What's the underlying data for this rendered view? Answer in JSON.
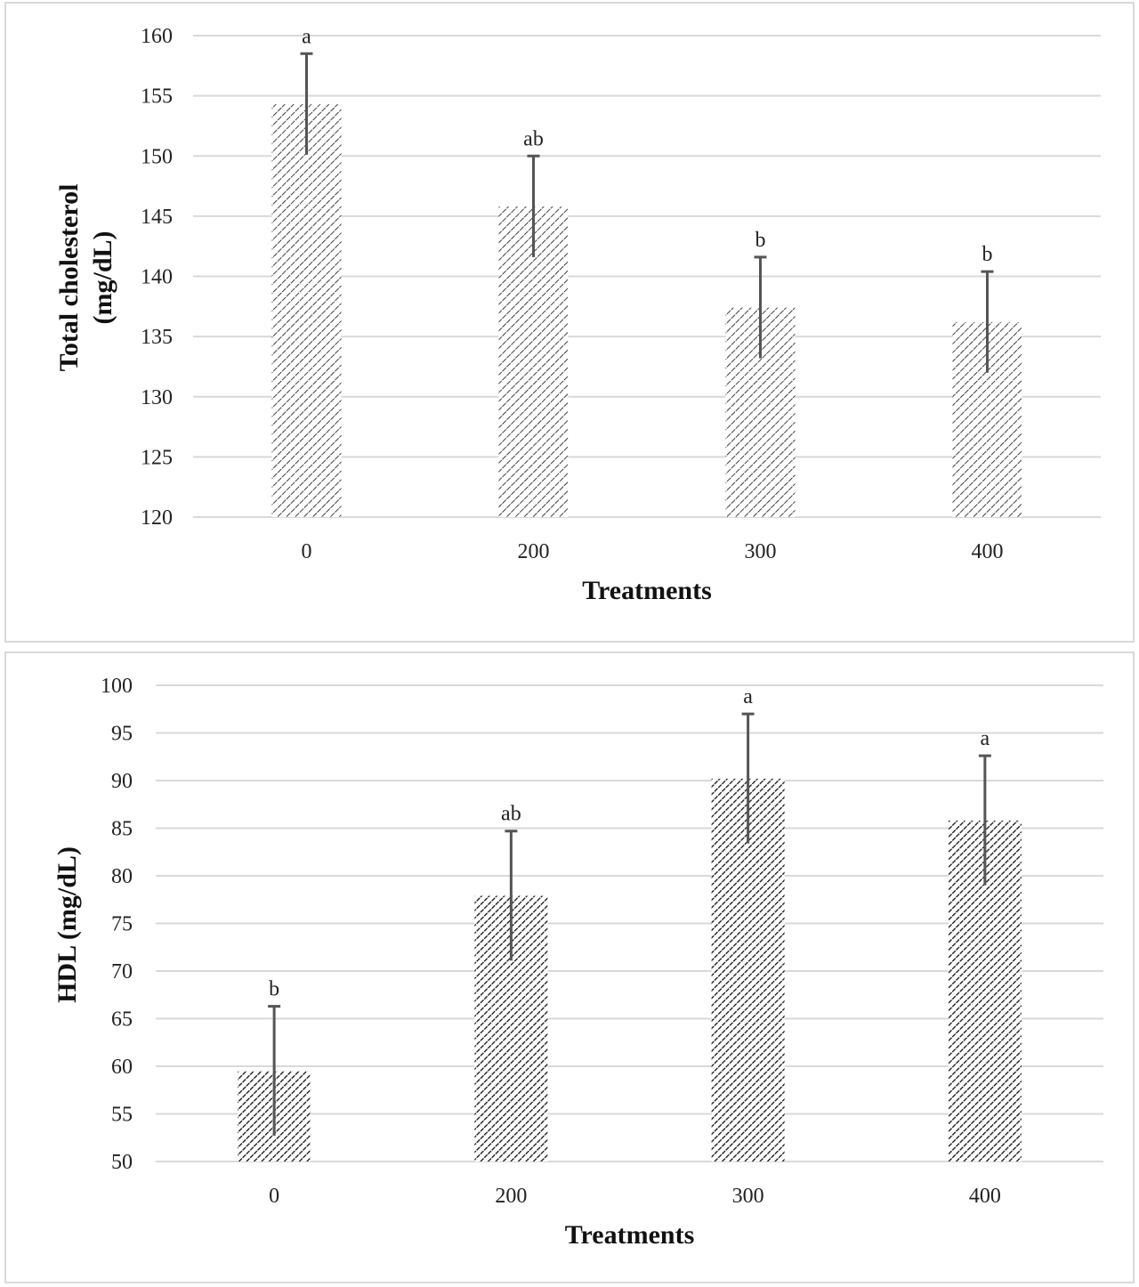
{
  "chart_data": [
    {
      "type": "bar",
      "categories": [
        "0",
        "200",
        "300",
        "400"
      ],
      "values": [
        154.3,
        145.8,
        137.4,
        136.2
      ],
      "error": [
        4.2,
        4.2,
        4.2,
        4.2
      ],
      "significance": [
        "a",
        "ab",
        "b",
        "b"
      ],
      "xlabel": "Treatments",
      "ylabel": [
        "Total cholesterol",
        "(mg/dL)"
      ],
      "ylim": [
        120,
        160
      ],
      "yticks": [
        120,
        125,
        130,
        135,
        140,
        145,
        150,
        155,
        160
      ],
      "pattern": "light-diagonal",
      "grid": true
    },
    {
      "type": "bar",
      "categories": [
        "0",
        "200",
        "300",
        "400"
      ],
      "values": [
        59.5,
        77.9,
        90.2,
        85.8
      ],
      "error": [
        6.8,
        6.8,
        6.8,
        6.8
      ],
      "significance": [
        "b",
        "ab",
        "a",
        "a"
      ],
      "xlabel": "Treatments",
      "ylabel": [
        "HDL (mg/dL)"
      ],
      "ylim": [
        50,
        100
      ],
      "yticks": [
        50,
        55,
        60,
        65,
        70,
        75,
        80,
        85,
        90,
        95,
        100
      ],
      "pattern": "dark-diagonal",
      "grid": true
    }
  ]
}
